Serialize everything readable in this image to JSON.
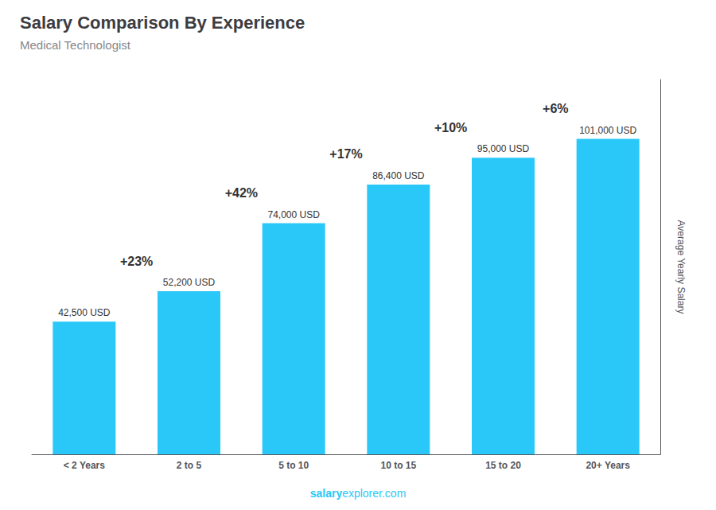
{
  "chart_data": {
    "type": "bar",
    "title": "Salary Comparison By Experience",
    "subtitle": "Medical Technologist",
    "categories": [
      "< 2 Years",
      "2 to 5",
      "5 to 10",
      "10 to 15",
      "15 to 20",
      "20+ Years"
    ],
    "values": [
      42500,
      52200,
      74000,
      86400,
      95000,
      101000
    ],
    "value_labels": [
      "42,500 USD",
      "52,200 USD",
      "74,000 USD",
      "86,400 USD",
      "95,000 USD",
      "101,000 USD"
    ],
    "data_labels": true,
    "annotations": [
      "+23%",
      "+42%",
      "+17%",
      "+10%",
      "+6%"
    ],
    "footer": [
      "salary",
      "explorer.com"
    ],
    "ylabel": "Average Yearly Salary",
    "color": "#2ac8f8",
    "ylim": [
      0,
      120000
    ],
    "tick_labels": "x",
    "grid": false
  }
}
